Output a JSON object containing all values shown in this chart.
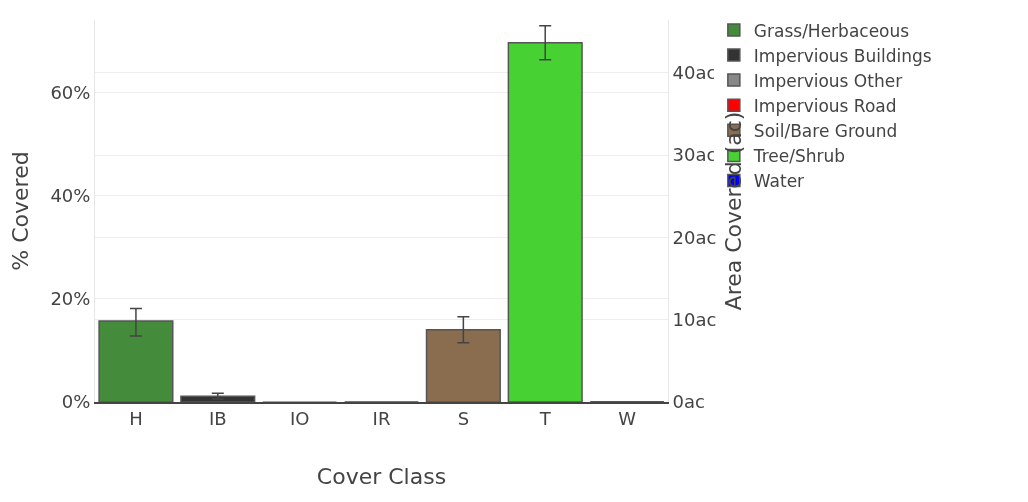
{
  "chart_data": {
    "type": "bar",
    "xlabel": "Cover Class",
    "ylabel": "% Covered",
    "y2label": "Area Covered (ac)",
    "categories": [
      "H",
      "IB",
      "IO",
      "IR",
      "S",
      "T",
      "W"
    ],
    "series": [
      {
        "name": "Grass/Herbaceous",
        "color": "#448b3c",
        "values": [
          15.7,
          null,
          null,
          null,
          null,
          null,
          null
        ],
        "errors": [
          [
            12.8,
            18.1
          ],
          null,
          null,
          null,
          null,
          null,
          null
        ]
      },
      {
        "name": "Impervious Buildings",
        "color": "#333333",
        "values": [
          null,
          1.1,
          null,
          null,
          null,
          null,
          null
        ],
        "errors": [
          null,
          [
            0.6,
            1.7
          ],
          null,
          null,
          null,
          null,
          null
        ]
      },
      {
        "name": "Impervious Other",
        "color": "#888888",
        "values": [
          null,
          null,
          0,
          null,
          null,
          null,
          null
        ]
      },
      {
        "name": "Impervious Road",
        "color": "#ff0000",
        "values": [
          null,
          null,
          null,
          0,
          null,
          null,
          null
        ]
      },
      {
        "name": "Soil/Bare Ground",
        "color": "#8a6d4f",
        "values": [
          null,
          null,
          null,
          null,
          14.0,
          null,
          null
        ],
        "errors": [
          null,
          null,
          null,
          null,
          [
            11.5,
            16.5
          ],
          null,
          null
        ]
      },
      {
        "name": "Tree/Shrub",
        "color": "#48d132",
        "values": [
          null,
          null,
          null,
          null,
          null,
          69.6,
          null
        ],
        "errors": [
          null,
          null,
          null,
          null,
          null,
          [
            66.3,
            72.9
          ],
          null
        ]
      },
      {
        "name": "Water",
        "color": "#0000ff",
        "values": [
          null,
          null,
          null,
          null,
          null,
          null,
          0
        ]
      }
    ],
    "ylim": [
      0,
      74
    ],
    "yticks": [
      {
        "value": 0,
        "label": "0%"
      },
      {
        "value": 20,
        "label": "20%"
      },
      {
        "value": 40,
        "label": "40%"
      },
      {
        "value": 60,
        "label": "60%"
      }
    ],
    "y2lim": [
      0,
      46.4
    ],
    "y2ticks": [
      {
        "value": 0,
        "label": "0ac"
      },
      {
        "value": 10,
        "label": "10ac"
      },
      {
        "value": 20,
        "label": "20ac"
      },
      {
        "value": 30,
        "label": "30ac"
      },
      {
        "value": 40,
        "label": "40ac"
      }
    ],
    "grid": "y",
    "legend": "top right"
  }
}
